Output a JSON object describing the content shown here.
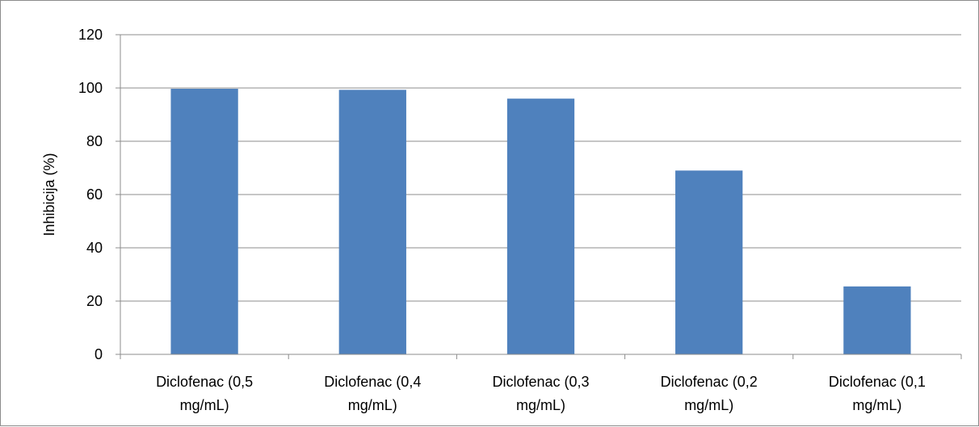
{
  "chart_data": {
    "type": "bar",
    "title": "",
    "xlabel": "",
    "ylabel": "Inhibicija (%)",
    "ylim": [
      0,
      120
    ],
    "yticks": [
      0,
      20,
      40,
      60,
      80,
      100,
      120
    ],
    "grid": true,
    "legend": "none",
    "bar_color": "#4f81bd",
    "categories": [
      [
        "Diclofenac (0,5",
        "mg/mL)"
      ],
      [
        "Diclofenac (0,4",
        "mg/mL)"
      ],
      [
        "Diclofenac (0,3",
        "mg/mL)"
      ],
      [
        "Diclofenac (0,2",
        "mg/mL)"
      ],
      [
        "Diclofenac (0,1",
        "mg/mL)"
      ]
    ],
    "values": [
      99.7,
      99.3,
      96.0,
      69.0,
      25.5
    ]
  }
}
